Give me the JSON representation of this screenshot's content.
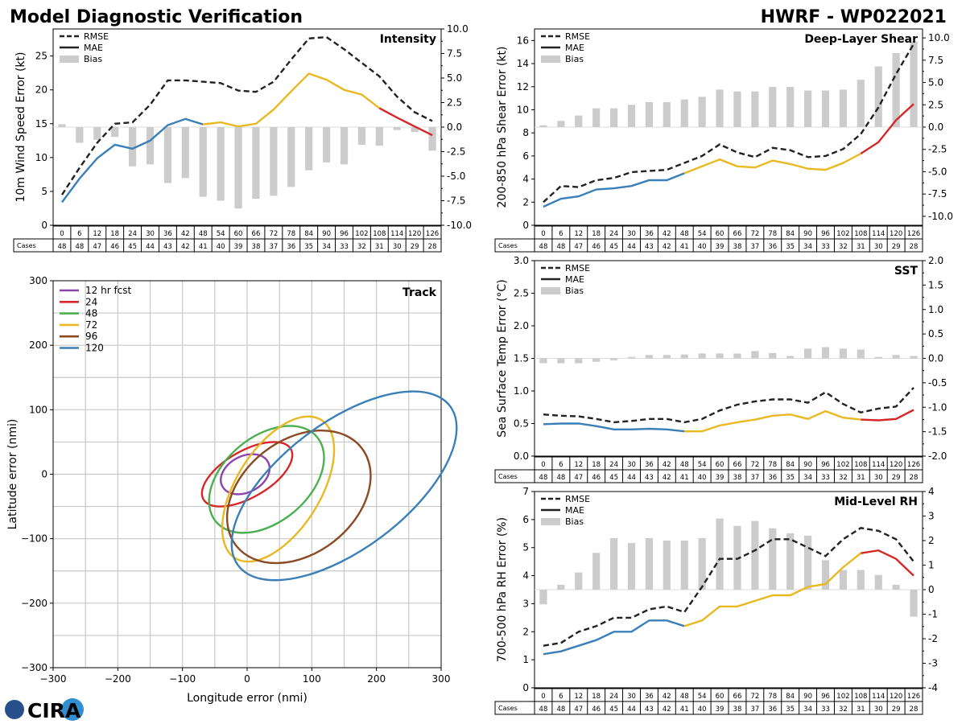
{
  "header": {
    "title": "Model Diagnostic Verification",
    "model": "HWRF - WP022021"
  },
  "logo": {
    "text": "CIRA",
    "color": "#27508c"
  },
  "colors": {
    "rmse": "#222222",
    "bias": "#cccccc",
    "seg1": "#3a7fb7",
    "seg2": "#e8b923",
    "seg3": "#d62728",
    "grid": "#c8c8c8"
  },
  "lead_times": [
    0,
    6,
    12,
    18,
    24,
    30,
    36,
    42,
    48,
    54,
    60,
    66,
    72,
    78,
    84,
    90,
    96,
    102,
    108,
    114,
    120,
    126
  ],
  "cases": [
    48,
    48,
    47,
    46,
    45,
    44,
    43,
    42,
    41,
    40,
    39,
    38,
    37,
    36,
    35,
    34,
    33,
    32,
    31,
    30,
    29,
    28
  ],
  "cases_label": "Cases",
  "chart_data": [
    {
      "type": "line",
      "id": "intensity",
      "title": "Intensity",
      "ylabel": "10m Wind Speed Error (kt)",
      "ylim": [
        0,
        29
      ],
      "yticks": [
        0,
        5,
        10,
        15,
        20,
        25
      ],
      "bias_lim": [
        -10,
        10
      ],
      "bias_ticks": [
        -10.0,
        -7.5,
        -5.0,
        -2.5,
        0.0,
        2.5,
        5.0,
        7.5,
        10.0
      ],
      "legend": [
        "RMSE",
        "MAE",
        "Bias"
      ],
      "rmse": [
        4.5,
        8.5,
        12.2,
        15.0,
        15.2,
        17.8,
        21.4,
        21.4,
        21.2,
        21.0,
        19.9,
        19.7,
        21.2,
        24.5,
        27.6,
        27.8,
        26.0,
        24.0,
        22.0,
        19.0,
        16.7,
        15.4
      ],
      "mae": [
        3.4,
        6.9,
        9.9,
        11.9,
        11.3,
        12.5,
        14.8,
        15.7,
        14.9,
        15.2,
        14.6,
        15.0,
        17.1,
        19.8,
        22.4,
        21.5,
        20.0,
        19.3,
        17.3,
        15.9,
        14.6,
        13.3
      ],
      "bias": [
        0.3,
        -1.6,
        -1.3,
        -1.0,
        -4.0,
        -3.8,
        -5.7,
        -5.2,
        -7.1,
        -7.5,
        -8.3,
        -7.3,
        -7.0,
        -6.1,
        -4.4,
        -3.6,
        -3.8,
        -1.8,
        -1.9,
        -0.3,
        -0.5,
        -2.4
      ]
    },
    {
      "type": "line",
      "id": "shear",
      "title": "Deep-Layer Shear",
      "ylabel": "200-850 hPa Shear Error (kt)",
      "ylim": [
        0,
        17
      ],
      "yticks": [
        0,
        2,
        4,
        6,
        8,
        10,
        12,
        14,
        16
      ],
      "bias_lim": [
        -11,
        11
      ],
      "bias_ticks": [
        -10.0,
        -7.5,
        -5.0,
        -2.5,
        0.0,
        2.5,
        5.0,
        7.5,
        10.0
      ],
      "legend": [
        "RMSE",
        "MAE",
        "Bias"
      ],
      "rmse": [
        2.0,
        3.4,
        3.3,
        3.9,
        4.1,
        4.6,
        4.7,
        4.8,
        5.4,
        6.0,
        7.0,
        6.3,
        5.9,
        6.7,
        6.5,
        5.9,
        6.0,
        6.6,
        7.9,
        10.2,
        13.1,
        15.7
      ],
      "mae": [
        1.6,
        2.3,
        2.5,
        3.1,
        3.2,
        3.4,
        3.9,
        3.9,
        4.5,
        5.1,
        5.7,
        5.1,
        5.0,
        5.6,
        5.3,
        4.9,
        4.8,
        5.4,
        6.2,
        7.2,
        9.1,
        10.5
      ],
      "bias": [
        0.2,
        0.7,
        1.3,
        2.1,
        2.1,
        2.5,
        2.8,
        2.8,
        3.1,
        3.4,
        4.2,
        4.0,
        4.0,
        4.5,
        4.5,
        4.1,
        4.1,
        4.2,
        5.3,
        6.8,
        8.3,
        9.6
      ]
    },
    {
      "type": "line",
      "id": "sst",
      "title": "SST",
      "ylabel": "Sea Surface Temp Error (°C)",
      "ylim": [
        0,
        3
      ],
      "yticks": [
        0.0,
        0.5,
        1.0,
        1.5,
        2.0,
        2.5,
        3.0
      ],
      "bias_lim": [
        -2,
        2
      ],
      "bias_ticks": [
        -2.0,
        -1.5,
        -1.0,
        -0.5,
        0.0,
        0.5,
        1.0,
        1.5,
        2.0
      ],
      "legend": [
        "RMSE",
        "MAE",
        "Bias"
      ],
      "rmse": [
        0.64,
        0.62,
        0.61,
        0.57,
        0.52,
        0.54,
        0.57,
        0.57,
        0.52,
        0.57,
        0.7,
        0.79,
        0.84,
        0.87,
        0.87,
        0.82,
        0.98,
        0.8,
        0.67,
        0.73,
        0.76,
        1.05
      ],
      "mae": [
        0.49,
        0.5,
        0.5,
        0.46,
        0.41,
        0.41,
        0.42,
        0.41,
        0.38,
        0.38,
        0.47,
        0.52,
        0.56,
        0.62,
        0.64,
        0.57,
        0.69,
        0.59,
        0.56,
        0.55,
        0.57,
        0.71
      ],
      "bias": [
        -0.1,
        -0.1,
        -0.1,
        -0.07,
        -0.04,
        0.03,
        0.07,
        0.07,
        0.08,
        0.1,
        0.1,
        0.1,
        0.15,
        0.11,
        0.05,
        0.2,
        0.23,
        0.2,
        0.18,
        0.03,
        0.07,
        0.05
      ]
    },
    {
      "type": "line",
      "id": "rh",
      "title": "Mid-Level RH",
      "ylabel": "700-500 hPa RH Error (%)",
      "ylim": [
        0,
        7
      ],
      "yticks": [
        0,
        1,
        2,
        3,
        4,
        5,
        6,
        7
      ],
      "bias_lim": [
        -4,
        4
      ],
      "bias_ticks": [
        -4,
        -3,
        -2,
        -1,
        0,
        1,
        2,
        3,
        4
      ],
      "legend": [
        "RMSE",
        "MAE",
        "Bias"
      ],
      "rmse": [
        1.5,
        1.6,
        2.0,
        2.2,
        2.5,
        2.5,
        2.8,
        2.9,
        2.7,
        3.6,
        4.6,
        4.6,
        4.9,
        5.3,
        5.3,
        5.0,
        4.7,
        5.3,
        5.7,
        5.6,
        5.3,
        4.5
      ],
      "mae": [
        1.2,
        1.3,
        1.5,
        1.7,
        2.0,
        2.0,
        2.4,
        2.4,
        2.2,
        2.4,
        2.9,
        2.9,
        3.1,
        3.3,
        3.3,
        3.6,
        3.7,
        4.3,
        4.8,
        4.9,
        4.6,
        4.0
      ],
      "bias": [
        -0.6,
        0.2,
        0.7,
        1.5,
        2.1,
        1.9,
        2.1,
        2.0,
        2.0,
        2.1,
        2.9,
        2.6,
        2.8,
        2.5,
        2.3,
        2.2,
        1.2,
        0.8,
        0.8,
        0.6,
        0.2,
        -1.1
      ]
    },
    {
      "type": "scatter",
      "id": "track",
      "title": "Track",
      "xlabel": "Longitude error (nmi)",
      "ylabel": "Latitude error (nmi)",
      "xlim": [
        -300,
        300
      ],
      "ylim": [
        -300,
        300
      ],
      "ticks": [
        -300,
        -200,
        -100,
        0,
        100,
        200,
        300
      ],
      "ellipses": [
        {
          "label": "12 hr fcst",
          "color": "#8e44ad",
          "cx": -3,
          "cy": 0,
          "rx": 40,
          "ry": 28,
          "angle": 28
        },
        {
          "label": "24",
          "color": "#d62728",
          "cx": 0,
          "cy": 0,
          "rx": 78,
          "ry": 36,
          "angle": 30
        },
        {
          "label": "48",
          "color": "#4caf50",
          "cx": 30,
          "cy": -8,
          "rx": 102,
          "ry": 66,
          "angle": 40
        },
        {
          "label": "72",
          "color": "#e8b923",
          "cx": 48,
          "cy": -23,
          "rx": 126,
          "ry": 65,
          "angle": 58
        },
        {
          "label": "96",
          "color": "#8b4a24",
          "cx": 80,
          "cy": -35,
          "rx": 123,
          "ry": 88,
          "angle": 38
        },
        {
          "label": "120",
          "color": "#3a7fb7",
          "cx": 150,
          "cy": -18,
          "rx": 205,
          "ry": 98,
          "angle": 37
        }
      ]
    }
  ]
}
